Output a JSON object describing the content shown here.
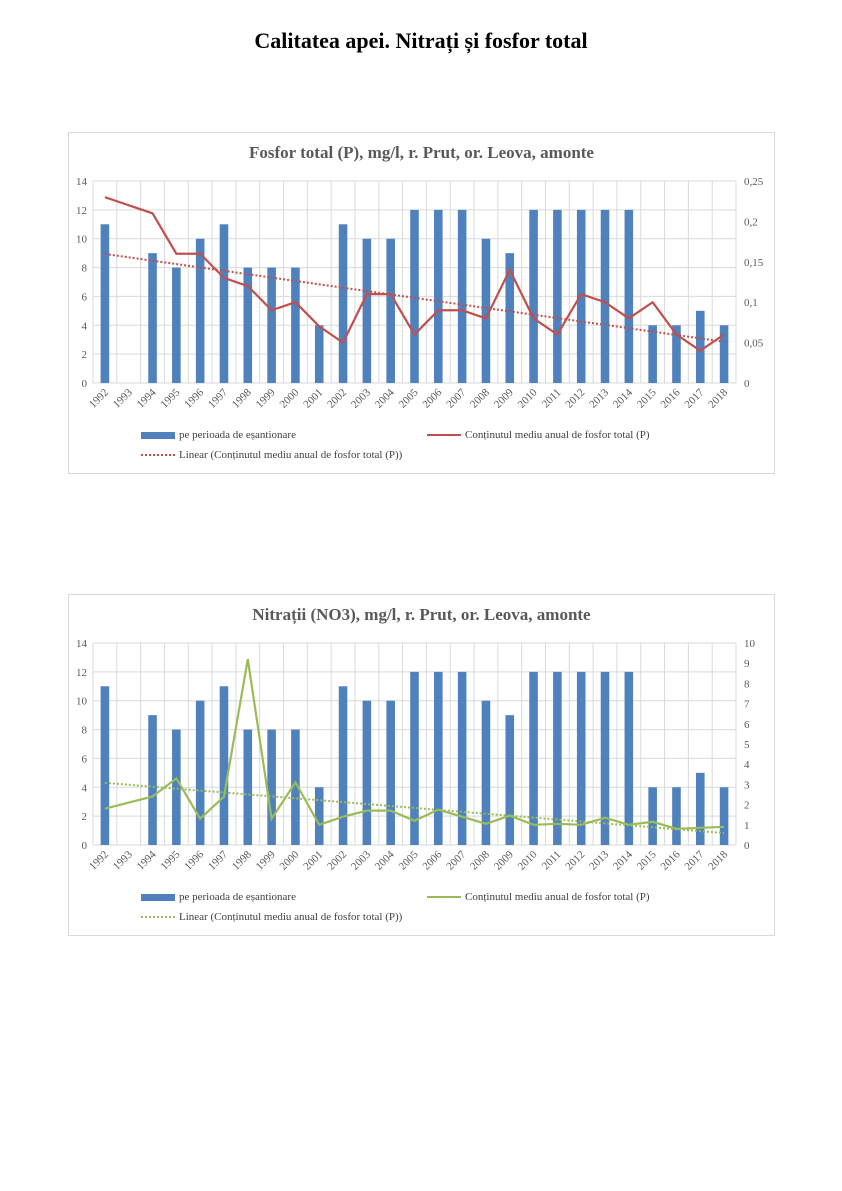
{
  "page_title": "Calitatea apei. Nitrați și fosfor total",
  "chart_data": [
    {
      "type": "bar+line",
      "title": "Fosfor total (P), mg/l, r. Prut, or. Leova, amonte",
      "categories": [
        "1992",
        "1993",
        "1994",
        "1995",
        "1996",
        "1997",
        "1998",
        "1999",
        "2000",
        "2001",
        "2002",
        "2003",
        "2004",
        "2005",
        "2006",
        "2007",
        "2008",
        "2009",
        "2010",
        "2011",
        "2012",
        "2013",
        "2014",
        "2015",
        "2016",
        "2017",
        "2018"
      ],
      "bar_series": {
        "name": "pe perioada de eșantionare",
        "values": [
          11,
          null,
          9,
          8,
          10,
          11,
          8,
          8,
          8,
          4,
          11,
          10,
          10,
          12,
          12,
          12,
          10,
          9,
          12,
          12,
          12,
          12,
          12,
          4,
          4,
          5,
          4
        ],
        "color": "#4f81bd"
      },
      "line_series": {
        "name": "Conținutul mediu anual de fosfor total (P)",
        "values": [
          0.23,
          null,
          0.21,
          0.16,
          0.16,
          0.13,
          0.12,
          0.09,
          0.1,
          0.07,
          0.05,
          0.11,
          0.11,
          0.06,
          0.09,
          0.09,
          0.08,
          0.14,
          0.08,
          0.06,
          0.11,
          0.1,
          0.08,
          0.1,
          0.06,
          0.04,
          0.06
        ],
        "color": "#c0504d"
      },
      "trend_name": "Linear (Conținutul mediu anual de fosfor total (P))",
      "left_axis": {
        "ylim": [
          0,
          14
        ],
        "ticks": [
          "0",
          "2",
          "4",
          "6",
          "8",
          "10",
          "12",
          "14"
        ]
      },
      "right_axis": {
        "ylim": [
          0,
          0.25
        ],
        "ticks": [
          "0",
          "0,05",
          "0,1",
          "0,15",
          "0,2",
          "0,25"
        ]
      },
      "grid": true,
      "legend": "bottom"
    },
    {
      "type": "bar+line",
      "title": "Nitrații (NO3), mg/l, r. Prut, or. Leova, amonte",
      "categories": [
        "1992",
        "1993",
        "1994",
        "1995",
        "1996",
        "1997",
        "1998",
        "1999",
        "2000",
        "2001",
        "2002",
        "2003",
        "2004",
        "2005",
        "2006",
        "2007",
        "2008",
        "2009",
        "2010",
        "2011",
        "2012",
        "2013",
        "2014",
        "2015",
        "2016",
        "2017",
        "2018"
      ],
      "bar_series": {
        "name": "pe perioada de eșantionare",
        "values": [
          11,
          null,
          9,
          8,
          10,
          11,
          8,
          8,
          8,
          4,
          11,
          10,
          10,
          12,
          12,
          12,
          10,
          9,
          12,
          12,
          12,
          12,
          12,
          4,
          4,
          5,
          4
        ],
        "color": "#4f81bd"
      },
      "line_series": {
        "name": "Conținutul mediu anual de fosfor total (P)",
        "values": [
          1.8,
          null,
          2.4,
          3.3,
          1.3,
          2.4,
          9.2,
          1.3,
          3.1,
          1.0,
          1.4,
          1.7,
          1.7,
          1.2,
          1.75,
          1.4,
          1.05,
          1.45,
          1.0,
          1.05,
          1.0,
          1.35,
          1.0,
          1.15,
          0.8,
          0.85,
          0.9
        ],
        "color": "#9bbb59"
      },
      "trend_name": "Linear (Conținutul mediu anual de fosfor total (P))",
      "left_axis": {
        "ylim": [
          0,
          14
        ],
        "ticks": [
          "0",
          "2",
          "4",
          "6",
          "8",
          "10",
          "12",
          "14"
        ]
      },
      "right_axis": {
        "ylim": [
          0,
          10
        ],
        "ticks": [
          "0",
          "1",
          "2",
          "3",
          "4",
          "5",
          "6",
          "7",
          "8",
          "9",
          "10"
        ]
      },
      "grid": true,
      "legend": "bottom"
    }
  ]
}
